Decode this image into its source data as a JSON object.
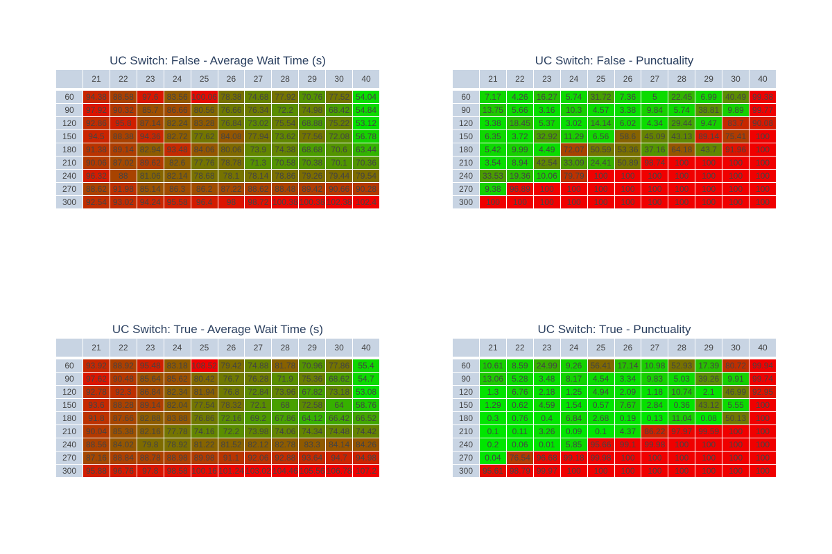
{
  "chart_data": [
    {
      "type": "table",
      "title": "UC Switch: False - Average Wait Time (s)",
      "metric": "wait",
      "columns": [
        "21",
        "22",
        "23",
        "24",
        "25",
        "26",
        "27",
        "28",
        "29",
        "30",
        "40"
      ],
      "rows": [
        "60",
        "90",
        "120",
        "150",
        "180",
        "210",
        "240",
        "270",
        "300"
      ],
      "cells": [
        [
          "94.38",
          "88.58",
          "97.6",
          "83.56",
          "100.06",
          "78.38",
          "74.68",
          "77.92",
          "70.76",
          "77.52",
          "54.04"
        ],
        [
          "97.92",
          "90.32",
          "85.7",
          "86.66",
          "80.56",
          "76.66",
          "76.34",
          "72.2",
          "74.98",
          "68.42",
          "54.84"
        ],
        [
          "92.86",
          "95.8",
          "87.14",
          "82.24",
          "83.28",
          "76.84",
          "73.02",
          "75.54",
          "68.88",
          "75.22",
          "53.12"
        ],
        [
          "94.5",
          "88.38",
          "94.36",
          "82.72",
          "77.62",
          "84.08",
          "77.94",
          "73.62",
          "77.56",
          "72.08",
          "56.78"
        ],
        [
          "91.38",
          "89.14",
          "82.94",
          "93.48",
          "84.06",
          "80.06",
          "73.9",
          "74.38",
          "68.68",
          "70.6",
          "63.44"
        ],
        [
          "90.06",
          "87.02",
          "89.62",
          "82.6",
          "77.76",
          "78.78",
          "71.3",
          "70.58",
          "70.38",
          "70.1",
          "70.36"
        ],
        [
          "96.32",
          "88",
          "81.06",
          "82.14",
          "78.68",
          "78.1",
          "78.14",
          "78.86",
          "79.26",
          "79.44",
          "79.54"
        ],
        [
          "88.62",
          "91.98",
          "85.14",
          "86.3",
          "86.2",
          "87.22",
          "88.62",
          "88.48",
          "89.42",
          "90.66",
          "90.28"
        ],
        [
          "92.54",
          "93.02",
          "94.24",
          "95.58",
          "96.4",
          "98",
          "98.72",
          "100.38",
          "100.38",
          "102.38",
          "102.4"
        ]
      ]
    },
    {
      "type": "table",
      "title": "UC Switch: False - Punctuality",
      "metric": "punct",
      "columns": [
        "21",
        "22",
        "23",
        "24",
        "25",
        "26",
        "27",
        "28",
        "29",
        "30",
        "40"
      ],
      "rows": [
        "60",
        "90",
        "120",
        "150",
        "180",
        "210",
        "240",
        "270",
        "300"
      ],
      "cells": [
        [
          "7.17",
          "4.26",
          "16.27",
          "5.74",
          "31.72",
          "7.36",
          "5",
          "22.45",
          "6.99",
          "40.49",
          "99.38"
        ],
        [
          "13.75",
          "5.66",
          "3.16",
          "10.3",
          "4.57",
          "3.38",
          "9.84",
          "5.74",
          "38.81",
          "9.89",
          "99.77"
        ],
        [
          "3.38",
          "18.45",
          "5.37",
          "3.02",
          "14.14",
          "6.02",
          "4.34",
          "29.44",
          "9.47",
          "83.7",
          "90.08"
        ],
        [
          "6.35",
          "3.72",
          "32.92",
          "11.29",
          "6.56",
          "58.6",
          "45.09",
          "43.13",
          "89.14",
          "75.41",
          "100"
        ],
        [
          "5.42",
          "9.99",
          "4.49",
          "72.07",
          "50.59",
          "53.36",
          "37.16",
          "64.18",
          "43.7",
          "91.96",
          "100"
        ],
        [
          "3.54",
          "8.94",
          "42.54",
          "33.09",
          "24.41",
          "50.89",
          "98.74",
          "100",
          "100",
          "100",
          "100"
        ],
        [
          "33.53",
          "19.36",
          "10.06",
          "79.79",
          "100",
          "100",
          "100",
          "100",
          "100",
          "100",
          "100"
        ],
        [
          "9.38",
          "96.89",
          "100",
          "100",
          "100",
          "100",
          "100",
          "100",
          "100",
          "100",
          "100"
        ],
        [
          "100",
          "100",
          "100",
          "100",
          "100",
          "100",
          "100",
          "100",
          "100",
          "100",
          "100"
        ]
      ]
    },
    {
      "type": "table",
      "title": "UC Switch: True - Average Wait Time (s)",
      "metric": "wait",
      "columns": [
        "21",
        "22",
        "23",
        "24",
        "25",
        "26",
        "27",
        "28",
        "29",
        "30",
        "40"
      ],
      "rows": [
        "60",
        "90",
        "120",
        "150",
        "180",
        "210",
        "240",
        "270",
        "300"
      ],
      "cells": [
        [
          "93.92",
          "88.92",
          "95.48",
          "83.18",
          "108.52",
          "79.42",
          "74.88",
          "81.78",
          "70.96",
          "77.86",
          "55.4"
        ],
        [
          "97.62",
          "90.48",
          "85.64",
          "85.62",
          "80.42",
          "76.7",
          "76.28",
          "71.9",
          "75.36",
          "68.62",
          "54.7"
        ],
        [
          "92.78",
          "92.3",
          "86.84",
          "82.34",
          "81.94",
          "76.8",
          "72.84",
          "73.96",
          "67.82",
          "73.18",
          "53.08"
        ],
        [
          "93.6",
          "88.28",
          "89.14",
          "82.04",
          "77.54",
          "78.32",
          "72.1",
          "68",
          "72.58",
          "64",
          "58.76"
        ],
        [
          "91.8",
          "87.66",
          "82.88",
          "83.88",
          "76.86",
          "72.16",
          "69.2",
          "67.86",
          "64.12",
          "66.42",
          "66.52"
        ],
        [
          "90.04",
          "85.38",
          "82.16",
          "77.78",
          "74.16",
          "72.2",
          "73.98",
          "74.06",
          "74.34",
          "74.48",
          "74.42"
        ],
        [
          "88.56",
          "84.02",
          "79.8",
          "78.92",
          "81.22",
          "81.52",
          "82.12",
          "82.78",
          "83.3",
          "84.14",
          "84.26"
        ],
        [
          "87.16",
          "88.84",
          "88.78",
          "88.98",
          "89.98",
          "91.1",
          "92.06",
          "92.88",
          "93.64",
          "94.7",
          "94.98"
        ],
        [
          "95.88",
          "96.76",
          "97.8",
          "98.58",
          "100.16",
          "101.24",
          "103.02",
          "104.46",
          "105.56",
          "106.78",
          "107.2"
        ]
      ]
    },
    {
      "type": "table",
      "title": "UC Switch: True - Punctuality",
      "metric": "punct",
      "columns": [
        "21",
        "22",
        "23",
        "24",
        "25",
        "26",
        "27",
        "28",
        "29",
        "30",
        "40"
      ],
      "rows": [
        "60",
        "90",
        "120",
        "150",
        "180",
        "210",
        "240",
        "270",
        "300"
      ],
      "cells": [
        [
          "10.61",
          "8.59",
          "24.99",
          "9.26",
          "56.41",
          "17.14",
          "10.98",
          "52.93",
          "17.39",
          "80.72",
          "99.94"
        ],
        [
          "13.06",
          "5.28",
          "3.48",
          "8.17",
          "4.54",
          "3.34",
          "9.83",
          "5.03",
          "39.26",
          "9.91",
          "99.74"
        ],
        [
          "1.3",
          "6.76",
          "2.18",
          "1.25",
          "4.94",
          "2.09",
          "1.18",
          "10.74",
          "2.1",
          "46.99",
          "92.95"
        ],
        [
          "1.29",
          "0.62",
          "4.59",
          "1.54",
          "0.57",
          "7.67",
          "2.84",
          "0.36",
          "43.12",
          "5.55",
          "100"
        ],
        [
          "0.3",
          "0.76",
          "0.4",
          "6.84",
          "2.68",
          "0.19",
          "0.13",
          "11.04",
          "0.08",
          "50.13",
          "100"
        ],
        [
          "0.1",
          "0.11",
          "3.26",
          "0.09",
          "0.1",
          "4.37",
          "86.22",
          "97.97",
          "99.59",
          "100",
          "100"
        ],
        [
          "0.2",
          "0.06",
          "0.01",
          "5.85",
          "95.66",
          "99.1",
          "99.98",
          "100",
          "100",
          "100",
          "100"
        ],
        [
          "0.04",
          "76.54",
          "96.68",
          "99.18",
          "99.98",
          "100",
          "100",
          "100",
          "100",
          "100",
          "100"
        ],
        [
          "95.61",
          "98.79",
          "99.97",
          "100",
          "100",
          "100",
          "100",
          "100",
          "100",
          "100",
          "100"
        ]
      ]
    }
  ]
}
